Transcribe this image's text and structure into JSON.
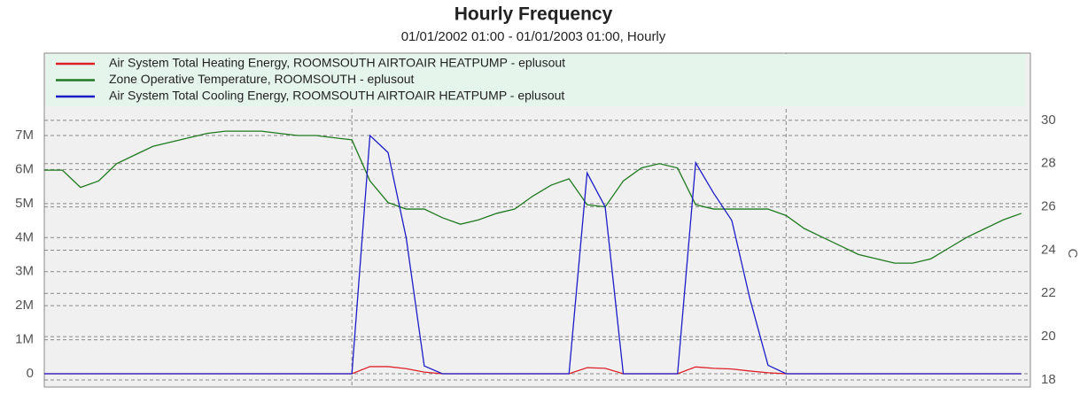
{
  "chart_data": {
    "type": "line",
    "title": "Hourly Frequency",
    "subtitle": "01/01/2002 01:00 - 01/01/2003 01:00, Hourly",
    "y2label": "C",
    "x": [
      0,
      1,
      2,
      3,
      4,
      5,
      6,
      7,
      8,
      9,
      10,
      11,
      12,
      13,
      14,
      15,
      16,
      17,
      18,
      19,
      20,
      21,
      22,
      23,
      24,
      25,
      26,
      27,
      28,
      29,
      30,
      31,
      32,
      33,
      34,
      35,
      36,
      37,
      38,
      39,
      40,
      41,
      42,
      43,
      44,
      45,
      46,
      47,
      48,
      49,
      50,
      51,
      52,
      53,
      54
    ],
    "xlim": [
      0,
      54.5
    ],
    "xticks": [
      17,
      41
    ],
    "ylim": [
      -390000,
      9420000
    ],
    "yticks": [
      {
        "value": 0,
        "label": "0"
      },
      {
        "value": 1000000,
        "label": "1M"
      },
      {
        "value": 2000000,
        "label": "2M"
      },
      {
        "value": 3000000,
        "label": "3M"
      },
      {
        "value": 4000000,
        "label": "4M"
      },
      {
        "value": 5000000,
        "label": "5M"
      },
      {
        "value": 6000000,
        "label": "6M"
      },
      {
        "value": 7000000,
        "label": "7M"
      }
    ],
    "y2lim": [
      17.67,
      33.11
    ],
    "y2ticks": [
      18,
      20,
      22,
      24,
      26,
      28,
      30
    ],
    "grid": true,
    "series": [
      {
        "name": "Air System Total Heating Energy, ROOMSOUTH AIRTOAIR HEATPUMP - eplusout",
        "color": "#e0202a",
        "values": [
          0,
          0,
          0,
          0,
          0,
          0,
          0,
          0,
          0,
          0,
          0,
          0,
          0,
          0,
          0,
          0,
          0,
          0,
          210000,
          210000,
          150000,
          50000,
          0,
          0,
          0,
          0,
          0,
          0,
          0,
          0,
          180000,
          160000,
          0,
          0,
          0,
          0,
          200000,
          160000,
          140000,
          80000,
          30000,
          0,
          0,
          0,
          0,
          0,
          0,
          0,
          0,
          0,
          0,
          0,
          0,
          0,
          0
        ]
      },
      {
        "name": "Zone Operative Temperature, ROOMSOUTH - eplusout",
        "color": "#1e7a1e",
        "axis": "y2",
        "values": [
          27.7,
          27.7,
          26.9,
          27.2,
          28.0,
          28.4,
          28.8,
          29.0,
          29.2,
          29.4,
          29.5,
          29.5,
          29.5,
          29.4,
          29.3,
          29.3,
          29.2,
          29.1,
          27.2,
          26.2,
          25.9,
          25.9,
          25.5,
          25.2,
          25.4,
          25.7,
          25.9,
          26.5,
          27.0,
          27.3,
          26.1,
          26.0,
          27.2,
          27.8,
          28.0,
          27.8,
          26.1,
          25.9,
          25.9,
          25.9,
          25.9,
          25.6,
          25.0,
          24.6,
          24.2,
          23.8,
          23.6,
          23.4,
          23.4,
          23.6,
          24.1,
          24.6,
          25.0,
          25.4,
          25.7
        ]
      },
      {
        "name": "Air System Total Cooling Energy, ROOMSOUTH AIRTOAIR HEATPUMP - eplusout",
        "color": "#1c1cc8",
        "values": [
          0,
          0,
          0,
          0,
          0,
          0,
          0,
          0,
          0,
          0,
          0,
          0,
          0,
          0,
          0,
          0,
          0,
          0,
          7000000,
          6500000,
          4000000,
          230000,
          0,
          0,
          0,
          0,
          0,
          0,
          0,
          0,
          5900000,
          4900000,
          0,
          0,
          0,
          0,
          6200000,
          5300000,
          4500000,
          2200000,
          250000,
          0,
          0,
          0,
          0,
          0,
          0,
          0,
          0,
          0,
          0,
          0,
          0,
          0,
          0
        ]
      }
    ]
  }
}
